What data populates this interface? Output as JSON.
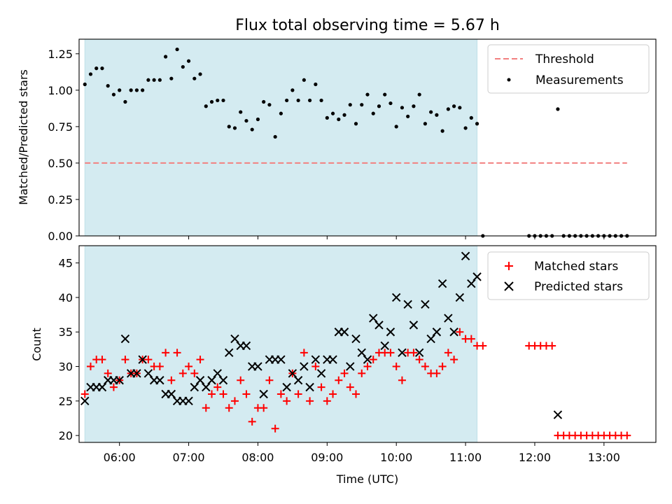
{
  "title": "Flux total observing time = 5.67 h",
  "colors": {
    "shade": "#d4ebf1",
    "threshold": "#f28080",
    "matched": "#ff0000",
    "predicted": "#000000",
    "measurement": "#000000"
  },
  "x_ticks": [
    "06:00",
    "07:00",
    "08:00",
    "09:00",
    "10:00",
    "11:00",
    "12:00",
    "13:00"
  ],
  "chart_data": [
    {
      "type": "scatter",
      "name": "top",
      "xlabel": "",
      "ylabel": "Matched/Predicted stars",
      "xlim": [
        "05:25",
        "13:45"
      ],
      "ylim": [
        0,
        1.35
      ],
      "yticks": [
        "0.00",
        "0.25",
        "0.50",
        "0.75",
        "1.00",
        "1.25"
      ],
      "shade_span": [
        "05:30",
        "11:10"
      ],
      "threshold": {
        "label": "Threshold",
        "value": 0.5,
        "x_range": [
          "05:30",
          "13:20"
        ]
      },
      "legend": {
        "position": "top-right",
        "entries": [
          "Threshold",
          "Measurements"
        ]
      },
      "measurements": {
        "name": "Measurements",
        "points": [
          [
            "05:30",
            1.04
          ],
          [
            "05:35",
            1.11
          ],
          [
            "05:40",
            1.15
          ],
          [
            "05:45",
            1.15
          ],
          [
            "05:50",
            1.03
          ],
          [
            "05:55",
            0.97
          ],
          [
            "06:00",
            1.0
          ],
          [
            "06:05",
            0.92
          ],
          [
            "06:10",
            1.0
          ],
          [
            "06:15",
            1.0
          ],
          [
            "06:20",
            1.0
          ],
          [
            "06:25",
            1.07
          ],
          [
            "06:30",
            1.07
          ],
          [
            "06:35",
            1.07
          ],
          [
            "06:40",
            1.23
          ],
          [
            "06:45",
            1.08
          ],
          [
            "06:50",
            1.28
          ],
          [
            "06:55",
            1.16
          ],
          [
            "07:00",
            1.2
          ],
          [
            "07:05",
            1.08
          ],
          [
            "07:10",
            1.11
          ],
          [
            "07:15",
            0.89
          ],
          [
            "07:20",
            0.92
          ],
          [
            "07:25",
            0.93
          ],
          [
            "07:30",
            0.93
          ],
          [
            "07:35",
            0.75
          ],
          [
            "07:40",
            0.74
          ],
          [
            "07:45",
            0.85
          ],
          [
            "07:50",
            0.79
          ],
          [
            "07:55",
            0.73
          ],
          [
            "08:00",
            0.8
          ],
          [
            "08:05",
            0.92
          ],
          [
            "08:10",
            0.9
          ],
          [
            "08:15",
            0.68
          ],
          [
            "08:20",
            0.84
          ],
          [
            "08:25",
            0.93
          ],
          [
            "08:30",
            1.0
          ],
          [
            "08:35",
            0.93
          ],
          [
            "08:40",
            1.07
          ],
          [
            "08:45",
            0.93
          ],
          [
            "08:50",
            1.04
          ],
          [
            "08:55",
            0.93
          ],
          [
            "09:00",
            0.81
          ],
          [
            "09:05",
            0.84
          ],
          [
            "09:10",
            0.8
          ],
          [
            "09:15",
            0.83
          ],
          [
            "09:20",
            0.9
          ],
          [
            "09:25",
            0.77
          ],
          [
            "09:30",
            0.9
          ],
          [
            "09:35",
            0.97
          ],
          [
            "09:40",
            0.84
          ],
          [
            "09:45",
            0.89
          ],
          [
            "09:50",
            0.97
          ],
          [
            "09:55",
            0.91
          ],
          [
            "10:00",
            0.75
          ],
          [
            "10:05",
            0.88
          ],
          [
            "10:10",
            0.82
          ],
          [
            "10:15",
            0.89
          ],
          [
            "10:20",
            0.97
          ],
          [
            "10:25",
            0.77
          ],
          [
            "10:30",
            0.85
          ],
          [
            "10:35",
            0.83
          ],
          [
            "10:40",
            0.72
          ],
          [
            "10:45",
            0.87
          ],
          [
            "10:50",
            0.89
          ],
          [
            "10:55",
            0.88
          ],
          [
            "11:00",
            0.74
          ],
          [
            "11:05",
            0.81
          ],
          [
            "11:10",
            0.77
          ],
          [
            "11:15",
            0.0
          ],
          [
            "11:55",
            0.0
          ],
          [
            "12:00",
            0.0
          ],
          [
            "12:05",
            0.0
          ],
          [
            "12:10",
            0.0
          ],
          [
            "12:15",
            0.0
          ],
          [
            "12:20",
            0.87
          ],
          [
            "12:25",
            0.0
          ],
          [
            "12:30",
            0.0
          ],
          [
            "12:35",
            0.0
          ],
          [
            "12:40",
            0.0
          ],
          [
            "12:45",
            0.0
          ],
          [
            "12:50",
            0.0
          ],
          [
            "12:55",
            0.0
          ],
          [
            "13:00",
            0.0
          ],
          [
            "13:05",
            0.0
          ],
          [
            "13:10",
            0.0
          ],
          [
            "13:15",
            0.0
          ],
          [
            "13:20",
            0.0
          ]
        ]
      }
    },
    {
      "type": "scatter",
      "name": "bottom",
      "xlabel": "Time (UTC)",
      "ylabel": "Count",
      "xlim": [
        "05:25",
        "13:45"
      ],
      "ylim": [
        19,
        47.5
      ],
      "yticks": [
        "20",
        "25",
        "30",
        "35",
        "40",
        "45"
      ],
      "shade_span": [
        "05:30",
        "11:10"
      ],
      "legend": {
        "position": "top-right",
        "entries": [
          "Matched stars",
          "Predicted stars"
        ]
      },
      "series": [
        {
          "name": "Matched stars",
          "marker": "plus",
          "points": [
            [
              "05:30",
              26
            ],
            [
              "05:35",
              30
            ],
            [
              "05:40",
              31
            ],
            [
              "05:45",
              31
            ],
            [
              "05:50",
              29
            ],
            [
              "05:55",
              27
            ],
            [
              "06:00",
              28
            ],
            [
              "06:05",
              31
            ],
            [
              "06:10",
              29
            ],
            [
              "06:15",
              29
            ],
            [
              "06:20",
              31
            ],
            [
              "06:25",
              31
            ],
            [
              "06:30",
              30
            ],
            [
              "06:35",
              30
            ],
            [
              "06:40",
              32
            ],
            [
              "06:45",
              28
            ],
            [
              "06:50",
              32
            ],
            [
              "06:55",
              29
            ],
            [
              "07:00",
              30
            ],
            [
              "07:05",
              29
            ],
            [
              "07:10",
              31
            ],
            [
              "07:15",
              24
            ],
            [
              "07:20",
              26
            ],
            [
              "07:25",
              27
            ],
            [
              "07:30",
              26
            ],
            [
              "07:35",
              24
            ],
            [
              "07:40",
              25
            ],
            [
              "07:45",
              28
            ],
            [
              "07:50",
              26
            ],
            [
              "07:55",
              22
            ],
            [
              "08:00",
              24
            ],
            [
              "08:05",
              24
            ],
            [
              "08:10",
              28
            ],
            [
              "08:15",
              21
            ],
            [
              "08:20",
              26
            ],
            [
              "08:25",
              25
            ],
            [
              "08:30",
              29
            ],
            [
              "08:35",
              26
            ],
            [
              "08:40",
              32
            ],
            [
              "08:45",
              25
            ],
            [
              "08:50",
              30
            ],
            [
              "08:55",
              27
            ],
            [
              "09:00",
              25
            ],
            [
              "09:05",
              26
            ],
            [
              "09:10",
              28
            ],
            [
              "09:15",
              29
            ],
            [
              "09:20",
              27
            ],
            [
              "09:25",
              26
            ],
            [
              "09:30",
              29
            ],
            [
              "09:35",
              30
            ],
            [
              "09:40",
              31
            ],
            [
              "09:45",
              32
            ],
            [
              "09:50",
              32
            ],
            [
              "09:55",
              32
            ],
            [
              "10:00",
              30
            ],
            [
              "10:05",
              28
            ],
            [
              "10:10",
              32
            ],
            [
              "10:15",
              32
            ],
            [
              "10:20",
              31
            ],
            [
              "10:25",
              30
            ],
            [
              "10:30",
              29
            ],
            [
              "10:35",
              29
            ],
            [
              "10:40",
              30
            ],
            [
              "10:45",
              32
            ],
            [
              "10:50",
              31
            ],
            [
              "10:55",
              35
            ],
            [
              "11:00",
              34
            ],
            [
              "11:05",
              34
            ],
            [
              "11:10",
              33
            ],
            [
              "11:15",
              33
            ],
            [
              "11:55",
              33
            ],
            [
              "12:00",
              33
            ],
            [
              "12:05",
              33
            ],
            [
              "12:10",
              33
            ],
            [
              "12:15",
              33
            ],
            [
              "12:20",
              20
            ],
            [
              "12:25",
              20
            ],
            [
              "12:30",
              20
            ],
            [
              "12:35",
              20
            ],
            [
              "12:40",
              20
            ],
            [
              "12:45",
              20
            ],
            [
              "12:50",
              20
            ],
            [
              "12:55",
              20
            ],
            [
              "13:00",
              20
            ],
            [
              "13:05",
              20
            ],
            [
              "13:10",
              20
            ],
            [
              "13:15",
              20
            ],
            [
              "13:20",
              20
            ]
          ]
        },
        {
          "name": "Predicted stars",
          "marker": "x",
          "points": [
            [
              "05:30",
              25
            ],
            [
              "05:35",
              27
            ],
            [
              "05:40",
              27
            ],
            [
              "05:45",
              27
            ],
            [
              "05:50",
              28
            ],
            [
              "05:55",
              28
            ],
            [
              "06:00",
              28
            ],
            [
              "06:05",
              34
            ],
            [
              "06:10",
              29
            ],
            [
              "06:15",
              29
            ],
            [
              "06:20",
              31
            ],
            [
              "06:25",
              29
            ],
            [
              "06:30",
              28
            ],
            [
              "06:35",
              28
            ],
            [
              "06:40",
              26
            ],
            [
              "06:45",
              26
            ],
            [
              "06:50",
              25
            ],
            [
              "06:55",
              25
            ],
            [
              "07:00",
              25
            ],
            [
              "07:05",
              27
            ],
            [
              "07:10",
              28
            ],
            [
              "07:15",
              27
            ],
            [
              "07:20",
              28
            ],
            [
              "07:25",
              29
            ],
            [
              "07:30",
              28
            ],
            [
              "07:35",
              32
            ],
            [
              "07:40",
              34
            ],
            [
              "07:45",
              33
            ],
            [
              "07:50",
              33
            ],
            [
              "07:55",
              30
            ],
            [
              "08:00",
              30
            ],
            [
              "08:05",
              26
            ],
            [
              "08:10",
              31
            ],
            [
              "08:15",
              31
            ],
            [
              "08:20",
              31
            ],
            [
              "08:25",
              27
            ],
            [
              "08:30",
              29
            ],
            [
              "08:35",
              28
            ],
            [
              "08:40",
              30
            ],
            [
              "08:45",
              27
            ],
            [
              "08:50",
              31
            ],
            [
              "08:55",
              29
            ],
            [
              "09:00",
              31
            ],
            [
              "09:05",
              31
            ],
            [
              "09:10",
              35
            ],
            [
              "09:15",
              35
            ],
            [
              "09:20",
              30
            ],
            [
              "09:25",
              34
            ],
            [
              "09:30",
              32
            ],
            [
              "09:35",
              31
            ],
            [
              "09:40",
              37
            ],
            [
              "09:45",
              36
            ],
            [
              "09:50",
              33
            ],
            [
              "09:55",
              35
            ],
            [
              "10:00",
              40
            ],
            [
              "10:05",
              32
            ],
            [
              "10:10",
              39
            ],
            [
              "10:15",
              36
            ],
            [
              "10:20",
              32
            ],
            [
              "10:25",
              39
            ],
            [
              "10:30",
              34
            ],
            [
              "10:35",
              35
            ],
            [
              "10:40",
              42
            ],
            [
              "10:45",
              37
            ],
            [
              "10:50",
              35
            ],
            [
              "10:55",
              40
            ],
            [
              "11:00",
              46
            ],
            [
              "11:05",
              42
            ],
            [
              "11:10",
              43
            ],
            [
              "12:20",
              23
            ]
          ]
        }
      ]
    }
  ]
}
